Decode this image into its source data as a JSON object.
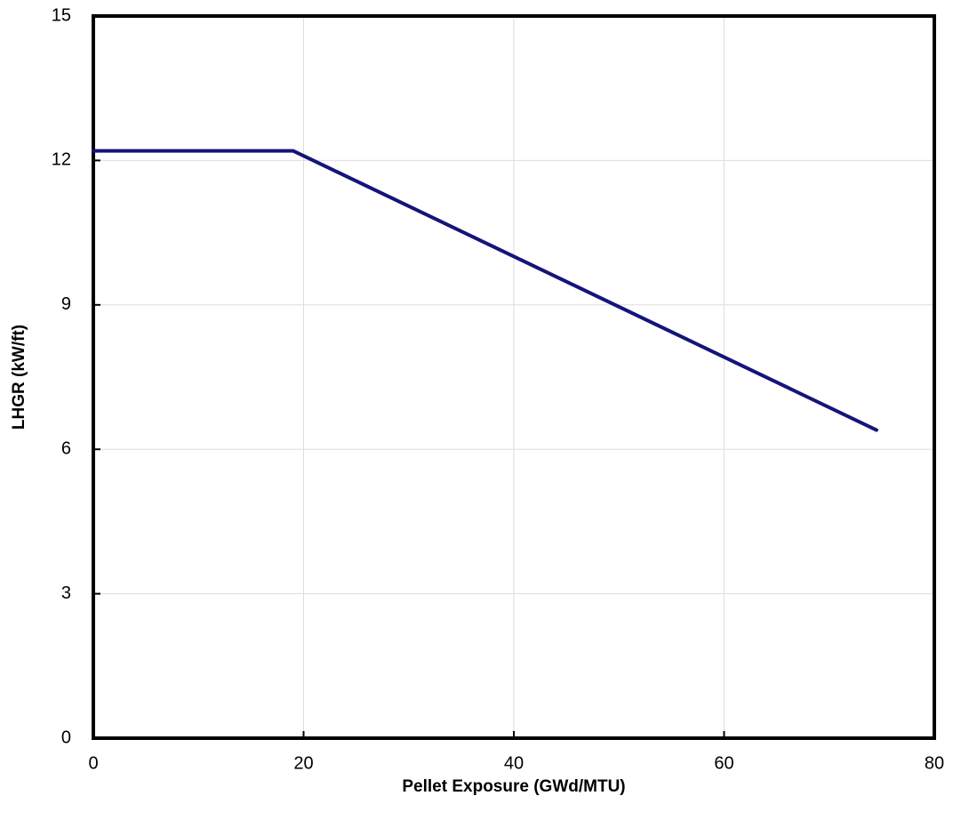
{
  "chart_data": {
    "type": "line",
    "x_label": "Pellet Exposure (GWd/MTU)",
    "y_label": "LHGR (kW/ft)",
    "x": [
      0,
      19,
      74.5
    ],
    "series": [
      {
        "color": "#14147a",
        "values": [
          12.2,
          12.2,
          6.4
        ]
      }
    ],
    "xlim": [
      0,
      80
    ],
    "xticks": [
      0,
      20,
      40,
      60,
      80
    ],
    "ylim": [
      0,
      15
    ],
    "yticks": [
      0,
      3,
      6,
      9,
      12,
      15
    ],
    "grid": true
  }
}
